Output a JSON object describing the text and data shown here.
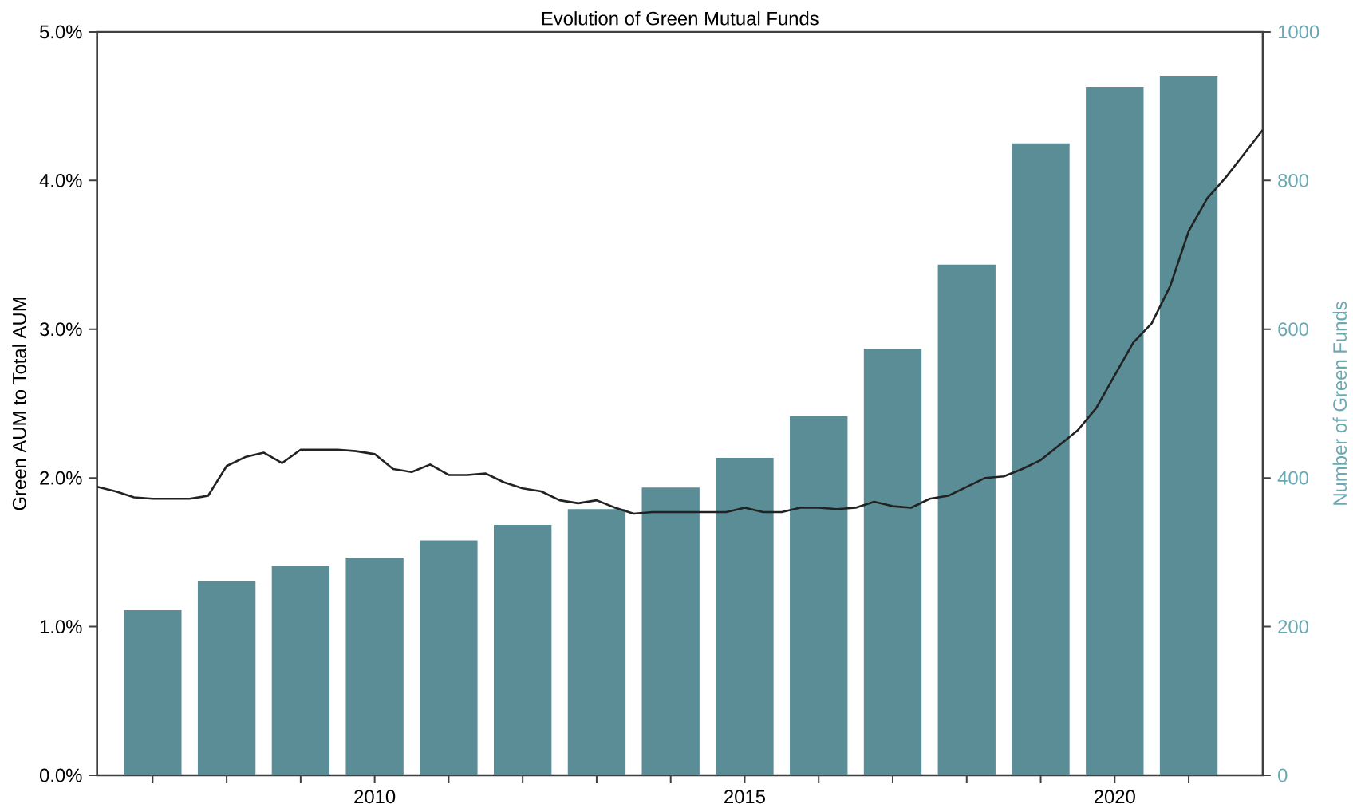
{
  "chart_data": {
    "type": "bar",
    "title": "Evolution of Green Mutual Funds",
    "ylabel": "Green AUM to Total AUM",
    "y2label": "Number of Green Funds",
    "xlim": [
      2006.25,
      2022
    ],
    "xticks": [
      {
        "value": 2007,
        "label": null
      },
      {
        "value": 2008,
        "label": null
      },
      {
        "value": 2009,
        "label": null
      },
      {
        "value": 2010,
        "label": "2010"
      },
      {
        "value": 2011,
        "label": null
      },
      {
        "value": 2012,
        "label": null
      },
      {
        "value": 2013,
        "label": null
      },
      {
        "value": 2014,
        "label": null
      },
      {
        "value": 2015,
        "label": "2015"
      },
      {
        "value": 2016,
        "label": null
      },
      {
        "value": 2017,
        "label": null
      },
      {
        "value": 2018,
        "label": null
      },
      {
        "value": 2019,
        "label": null
      },
      {
        "value": 2020,
        "label": "2020"
      },
      {
        "value": 2021,
        "label": null
      }
    ],
    "ylim": [
      0,
      5
    ],
    "yticks": [
      {
        "value": 0,
        "label": "0.0%"
      },
      {
        "value": 1,
        "label": "1.0%"
      },
      {
        "value": 2,
        "label": "2.0%"
      },
      {
        "value": 3,
        "label": "3.0%"
      },
      {
        "value": 4,
        "label": "4.0%"
      },
      {
        "value": 5,
        "label": "5.0%"
      }
    ],
    "y2lim": [
      0,
      1000
    ],
    "y2ticks": [
      0,
      200,
      400,
      600,
      800,
      1000
    ],
    "grid": false,
    "legend": false,
    "series": [
      {
        "axis": "y2",
        "color": "#5a8d96",
        "x": [
          2007,
          2008,
          2009,
          2010,
          2011,
          2012,
          2013,
          2014,
          2015,
          2016,
          2017,
          2018,
          2019,
          2020,
          2021
        ],
        "values": [
          222,
          261,
          281,
          293,
          316,
          337,
          358,
          387,
          427,
          483,
          574,
          687,
          850,
          926,
          941
        ]
      },
      {
        "type": "line",
        "axis": "y",
        "color": "#222222",
        "x": [
          2006.25,
          2006.5,
          2006.75,
          2007,
          2007.5,
          2007.75,
          2008,
          2008.25,
          2008.5,
          2008.75,
          2009,
          2009.25,
          2009.5,
          2009.75,
          2010,
          2010.25,
          2010.5,
          2010.75,
          2011,
          2011.25,
          2011.5,
          2011.75,
          2012,
          2012.25,
          2012.5,
          2012.75,
          2013,
          2013.25,
          2013.5,
          2013.75,
          2014,
          2014.25,
          2014.75,
          2015,
          2015.25,
          2015.5,
          2015.75,
          2016,
          2016.25,
          2016.5,
          2016.75,
          2017,
          2017.25,
          2017.5,
          2017.75,
          2018,
          2018.25,
          2018.5,
          2018.75,
          2019,
          2019.25,
          2019.5,
          2019.75,
          2020,
          2020.25,
          2020.5,
          2020.75,
          2021,
          2021.25,
          2021.5,
          2021.75,
          2022
        ],
        "values": [
          1.94,
          1.91,
          1.87,
          1.86,
          1.86,
          1.88,
          2.08,
          2.14,
          2.17,
          2.1,
          2.19,
          2.19,
          2.19,
          2.18,
          2.16,
          2.06,
          2.04,
          2.09,
          2.02,
          2.02,
          2.03,
          1.97,
          1.93,
          1.91,
          1.85,
          1.83,
          1.85,
          1.8,
          1.76,
          1.77,
          1.77,
          1.77,
          1.77,
          1.8,
          1.77,
          1.77,
          1.8,
          1.8,
          1.79,
          1.8,
          1.84,
          1.81,
          1.8,
          1.86,
          1.88,
          1.94,
          2.0,
          2.01,
          2.06,
          2.12,
          2.22,
          2.32,
          2.47,
          2.69,
          2.91,
          3.04,
          3.29,
          3.66,
          3.88,
          4.02,
          4.18,
          4.34
        ]
      }
    ]
  }
}
